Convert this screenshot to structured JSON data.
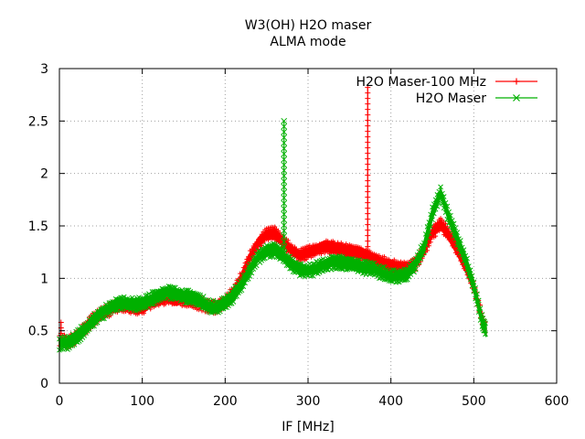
{
  "chart_data": {
    "type": "line",
    "title": "W3(OH) H2O maser",
    "subtitle": "ALMA mode",
    "xlabel": "IF [MHz]",
    "ylabel": "",
    "xlim": [
      0,
      600
    ],
    "ylim": [
      0,
      3
    ],
    "x_ticks": [
      "0",
      "100",
      "200",
      "300",
      "400",
      "500",
      "600"
    ],
    "y_ticks": [
      "0",
      "0.5",
      "1",
      "1.5",
      "2",
      "2.5",
      "3"
    ],
    "grid": true,
    "legend_position": "top-right",
    "series": [
      {
        "name": "H2O Maser-100 MHz",
        "color": "#ff0000",
        "marker": "plus",
        "band_halfwidth": 0.05,
        "points": [
          [
            0,
            0.4
          ],
          [
            10,
            0.4
          ],
          [
            20,
            0.44
          ],
          [
            30,
            0.52
          ],
          [
            40,
            0.6
          ],
          [
            50,
            0.66
          ],
          [
            60,
            0.7
          ],
          [
            70,
            0.74
          ],
          [
            80,
            0.73
          ],
          [
            90,
            0.72
          ],
          [
            100,
            0.72
          ],
          [
            110,
            0.77
          ],
          [
            120,
            0.8
          ],
          [
            130,
            0.82
          ],
          [
            140,
            0.8
          ],
          [
            150,
            0.8
          ],
          [
            160,
            0.78
          ],
          [
            170,
            0.76
          ],
          [
            180,
            0.73
          ],
          [
            190,
            0.72
          ],
          [
            200,
            0.77
          ],
          [
            210,
            0.87
          ],
          [
            220,
            1.01
          ],
          [
            230,
            1.2
          ],
          [
            240,
            1.33
          ],
          [
            250,
            1.42
          ],
          [
            260,
            1.43
          ],
          [
            270,
            1.34
          ],
          [
            280,
            1.27
          ],
          [
            290,
            1.22
          ],
          [
            300,
            1.25
          ],
          [
            310,
            1.27
          ],
          [
            320,
            1.3
          ],
          [
            330,
            1.29
          ],
          [
            340,
            1.28
          ],
          [
            350,
            1.26
          ],
          [
            360,
            1.24
          ],
          [
            370,
            1.22
          ],
          [
            380,
            1.18
          ],
          [
            390,
            1.15
          ],
          [
            400,
            1.12
          ],
          [
            410,
            1.11
          ],
          [
            420,
            1.11
          ],
          [
            430,
            1.14
          ],
          [
            440,
            1.26
          ],
          [
            450,
            1.43
          ],
          [
            460,
            1.52
          ],
          [
            470,
            1.42
          ],
          [
            480,
            1.28
          ],
          [
            490,
            1.12
          ],
          [
            500,
            0.92
          ],
          [
            510,
            0.62
          ],
          [
            515,
            0.5
          ]
        ],
        "spikes": [
          [
            2,
            0.58
          ],
          [
            372,
            2.82
          ]
        ]
      },
      {
        "name": "H2O Maser",
        "color": "#00b000",
        "marker": "cross",
        "band_halfwidth": 0.05,
        "points": [
          [
            0,
            0.38
          ],
          [
            10,
            0.38
          ],
          [
            20,
            0.43
          ],
          [
            30,
            0.51
          ],
          [
            40,
            0.59
          ],
          [
            50,
            0.66
          ],
          [
            60,
            0.71
          ],
          [
            70,
            0.76
          ],
          [
            80,
            0.76
          ],
          [
            90,
            0.75
          ],
          [
            100,
            0.76
          ],
          [
            110,
            0.8
          ],
          [
            120,
            0.84
          ],
          [
            130,
            0.87
          ],
          [
            140,
            0.85
          ],
          [
            150,
            0.83
          ],
          [
            160,
            0.82
          ],
          [
            170,
            0.78
          ],
          [
            180,
            0.74
          ],
          [
            190,
            0.72
          ],
          [
            200,
            0.76
          ],
          [
            210,
            0.84
          ],
          [
            220,
            0.94
          ],
          [
            230,
            1.08
          ],
          [
            240,
            1.2
          ],
          [
            250,
            1.26
          ],
          [
            260,
            1.27
          ],
          [
            270,
            1.22
          ],
          [
            280,
            1.13
          ],
          [
            290,
            1.09
          ],
          [
            300,
            1.07
          ],
          [
            310,
            1.1
          ],
          [
            320,
            1.13
          ],
          [
            330,
            1.15
          ],
          [
            340,
            1.15
          ],
          [
            350,
            1.14
          ],
          [
            360,
            1.12
          ],
          [
            370,
            1.1
          ],
          [
            380,
            1.08
          ],
          [
            390,
            1.05
          ],
          [
            400,
            1.02
          ],
          [
            410,
            1.02
          ],
          [
            420,
            1.05
          ],
          [
            430,
            1.14
          ],
          [
            440,
            1.3
          ],
          [
            450,
            1.62
          ],
          [
            460,
            1.82
          ],
          [
            470,
            1.58
          ],
          [
            480,
            1.38
          ],
          [
            490,
            1.18
          ],
          [
            500,
            0.92
          ],
          [
            510,
            0.6
          ],
          [
            515,
            0.5
          ]
        ],
        "spikes": [
          [
            271,
            2.5
          ]
        ]
      }
    ]
  }
}
